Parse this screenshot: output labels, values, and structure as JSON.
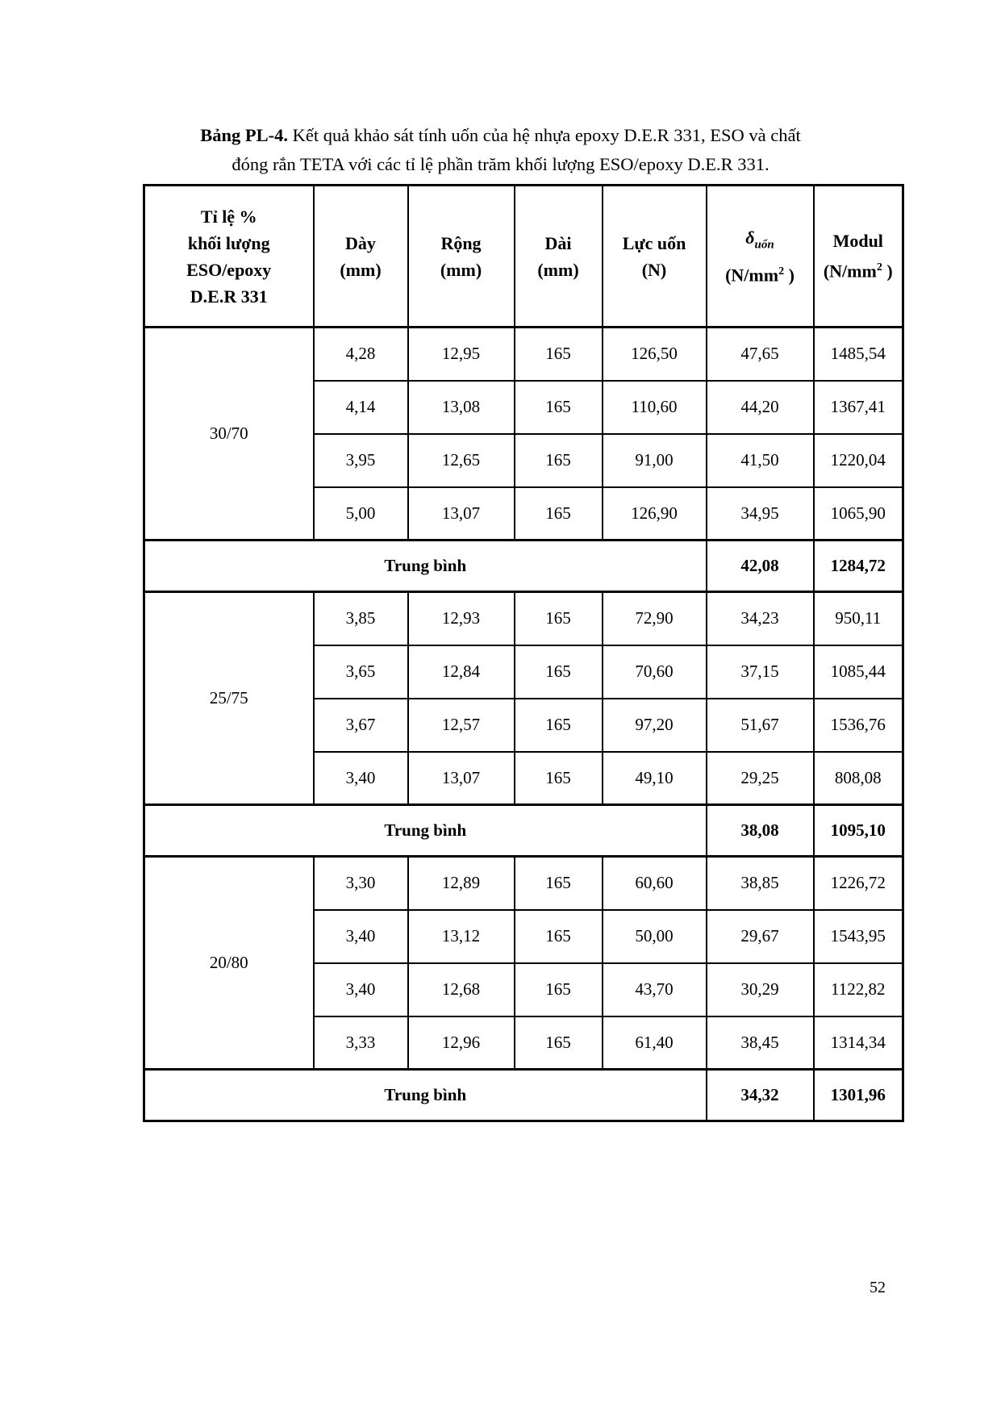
{
  "title": {
    "prefix": "Bảng PL-4.",
    "line1_rest": " Kết quả khảo sát tính uốn của hệ nhựa epoxy D.E.R 331, ESO và chất",
    "line2": "đóng rắn TETA với các tỉ lệ phần trăm khối lượng ESO/epoxy D.E.R 331."
  },
  "page_number": "52",
  "table": {
    "header": {
      "col_ratio": {
        "line1": "Tỉ lệ %",
        "line2": "khối lượng",
        "line3": "ESO/epoxy",
        "line4": "D.E.R 331"
      },
      "col_day": {
        "line1": "Dày",
        "line2": "(mm)"
      },
      "col_rong": {
        "line1": "Rộng",
        "line2": "(mm)"
      },
      "col_dai": {
        "line1": "Dài",
        "line2": "(mm)"
      },
      "col_luc": {
        "line1": "Lực uốn",
        "line2": "(N)"
      },
      "col_delta": {
        "symbol": "δ",
        "subscript": "uốn",
        "unit_pre": "(N/mm",
        "unit_sup": "2",
        "unit_post": " )"
      },
      "col_modul": {
        "line1": "Modul",
        "unit_pre": "(N/mm",
        "unit_sup": "2",
        "unit_post": " )"
      }
    },
    "avg_label": "Trung bình",
    "groups": [
      {
        "ratio": "30/70",
        "rows": [
          [
            "4,28",
            "12,95",
            "165",
            "126,50",
            "47,65",
            "1485,54"
          ],
          [
            "4,14",
            "13,08",
            "165",
            "110,60",
            "44,20",
            "1367,41"
          ],
          [
            "3,95",
            "12,65",
            "165",
            "91,00",
            "41,50",
            "1220,04"
          ],
          [
            "5,00",
            "13,07",
            "165",
            "126,90",
            "34,95",
            "1065,90"
          ]
        ],
        "avg_delta": "42,08",
        "avg_modul": "1284,72"
      },
      {
        "ratio": "25/75",
        "rows": [
          [
            "3,85",
            "12,93",
            "165",
            "72,90",
            "34,23",
            "950,11"
          ],
          [
            "3,65",
            "12,84",
            "165",
            "70,60",
            "37,15",
            "1085,44"
          ],
          [
            "3,67",
            "12,57",
            "165",
            "97,20",
            "51,67",
            "1536,76"
          ],
          [
            "3,40",
            "13,07",
            "165",
            "49,10",
            "29,25",
            "808,08"
          ]
        ],
        "avg_delta": "38,08",
        "avg_modul": "1095,10"
      },
      {
        "ratio": "20/80",
        "rows": [
          [
            "3,30",
            "12,89",
            "165",
            "60,60",
            "38,85",
            "1226,72"
          ],
          [
            "3,40",
            "13,12",
            "165",
            "50,00",
            "29,67",
            "1543,95"
          ],
          [
            "3,40",
            "12,68",
            "165",
            "43,70",
            "30,29",
            "1122,82"
          ],
          [
            "3,33",
            "12,96",
            "165",
            "61,40",
            "38,45",
            "1314,34"
          ]
        ],
        "avg_delta": "34,32",
        "avg_modul": "1301,96"
      }
    ]
  }
}
